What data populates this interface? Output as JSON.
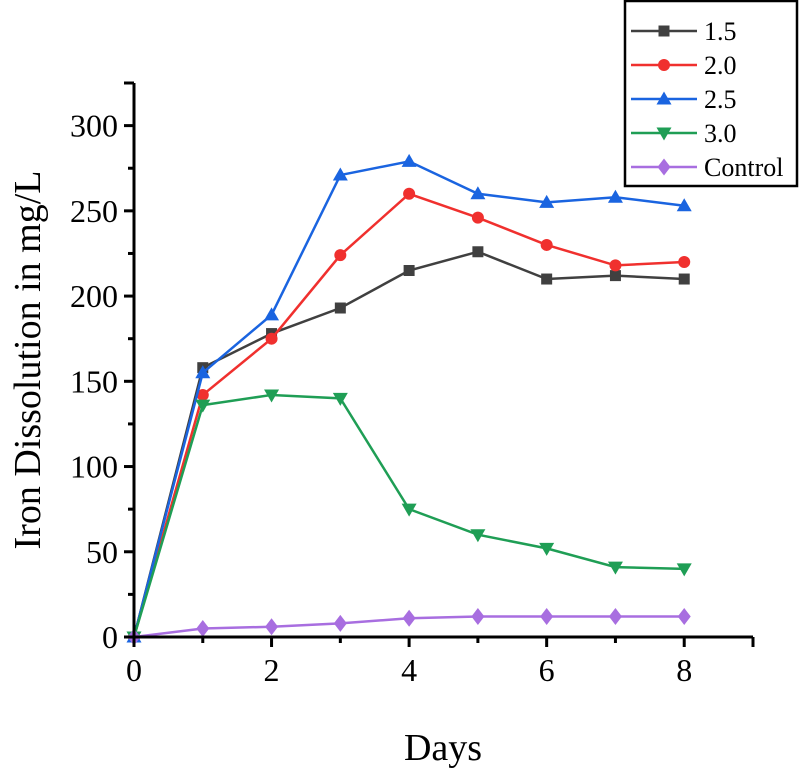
{
  "chart_data": {
    "type": "line",
    "title": "",
    "xlabel": "Days",
    "ylabel": "Iron Dissolution in mg/L",
    "xlim": [
      0,
      9
    ],
    "ylim": [
      0,
      325
    ],
    "xticks": [
      0,
      2,
      4,
      6,
      8
    ],
    "yticks": [
      0,
      50,
      100,
      150,
      200,
      250,
      300
    ],
    "grid": false,
    "legend_position": "top-right",
    "x": [
      0,
      1,
      2,
      3,
      4,
      5,
      6,
      7,
      8
    ],
    "series": [
      {
        "name": "1.5",
        "color": "#404040",
        "marker": "square",
        "values": [
          0,
          158,
          178,
          193,
          215,
          226,
          210,
          212,
          210
        ]
      },
      {
        "name": "2.0",
        "color": "#f0302e",
        "marker": "circle",
        "values": [
          0,
          142,
          175,
          224,
          260,
          246,
          230,
          218,
          220
        ]
      },
      {
        "name": "2.5",
        "color": "#1a64e0",
        "marker": "triangle-up",
        "values": [
          0,
          155,
          189,
          271,
          279,
          260,
          255,
          258,
          253
        ]
      },
      {
        "name": "3.0",
        "color": "#1f9e55",
        "marker": "triangle-down",
        "values": [
          0,
          136,
          142,
          140,
          75,
          60,
          52,
          41,
          40
        ]
      },
      {
        "name": "Control",
        "color": "#a86ee0",
        "marker": "diamond",
        "values": [
          0,
          5,
          6,
          8,
          11,
          12,
          12,
          12,
          12
        ]
      }
    ]
  }
}
